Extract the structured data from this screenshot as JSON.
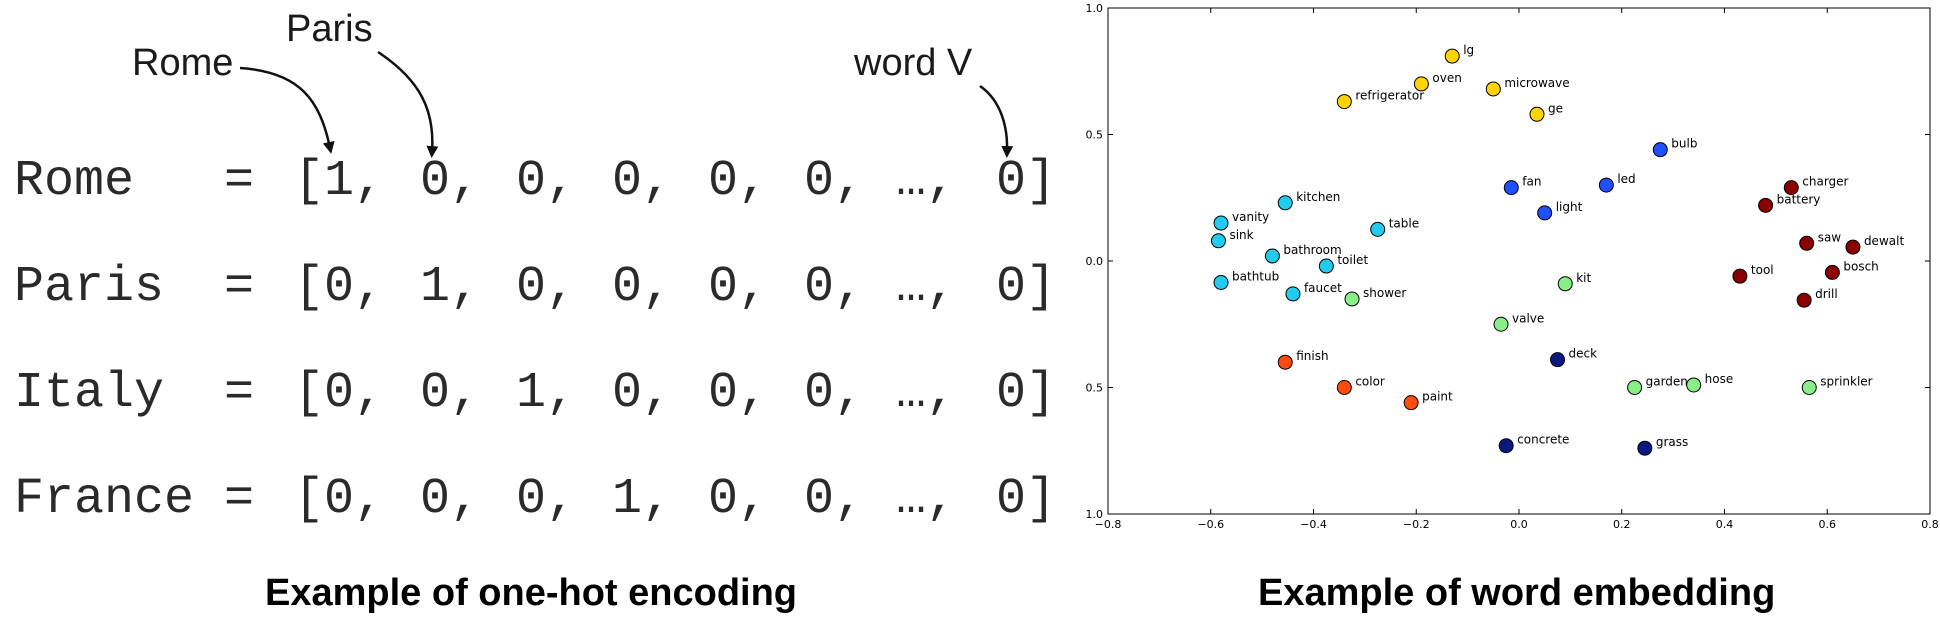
{
  "one_hot": {
    "callouts": {
      "rome": "Rome",
      "paris": "Paris",
      "word_v": "word V"
    },
    "open_bracket": "[",
    "close_bracket": "]",
    "equals": "=",
    "rows": [
      {
        "word": "Rome",
        "cells": [
          "1,",
          "0,",
          "0,",
          "0,",
          "0,",
          "0,",
          "…,",
          "0"
        ]
      },
      {
        "word": "Paris",
        "cells": [
          "0,",
          "1,",
          "0,",
          "0,",
          "0,",
          "0,",
          "…,",
          "0"
        ]
      },
      {
        "word": "Italy",
        "cells": [
          "0,",
          "0,",
          "1,",
          "0,",
          "0,",
          "0,",
          "…,",
          "0"
        ]
      },
      {
        "word": "France",
        "cells": [
          "0,",
          "0,",
          "0,",
          "1,",
          "0,",
          "0,",
          "…,",
          "0"
        ]
      }
    ],
    "caption": "Example of one-hot encoding"
  },
  "embedding_caption": "Example of word embedding",
  "chart_data": {
    "type": "scatter",
    "title": "",
    "xlabel": "",
    "ylabel": "",
    "xlim": [
      -0.8,
      0.8
    ],
    "ylim": [
      -1.0,
      1.0
    ],
    "x_ticks": [
      "−0.8",
      "−0.6",
      "−0.4",
      "−0.2",
      "0.0",
      "0.2",
      "0.4",
      "0.6",
      "0.8"
    ],
    "y_ticks": [
      "1.0",
      "0.5",
      "0.0",
      "0.5",
      "1.0"
    ],
    "grid": false,
    "points": [
      {
        "label": "lg",
        "x": -0.13,
        "y": 0.81,
        "color": "#ffd400"
      },
      {
        "label": "oven",
        "x": -0.19,
        "y": 0.7,
        "color": "#ffd400"
      },
      {
        "label": "microwave",
        "x": -0.05,
        "y": 0.68,
        "color": "#ffd400"
      },
      {
        "label": "refrigerator",
        "x": -0.34,
        "y": 0.63,
        "color": "#ffd400"
      },
      {
        "label": "ge",
        "x": 0.035,
        "y": 0.58,
        "color": "#ffd400"
      },
      {
        "label": "bulb",
        "x": 0.275,
        "y": 0.44,
        "color": "#1f4fff"
      },
      {
        "label": "fan",
        "x": -0.015,
        "y": 0.29,
        "color": "#1f4fff"
      },
      {
        "label": "led",
        "x": 0.17,
        "y": 0.3,
        "color": "#1f4fff"
      },
      {
        "label": "light",
        "x": 0.05,
        "y": 0.19,
        "color": "#1f4fff"
      },
      {
        "label": "charger",
        "x": 0.53,
        "y": 0.29,
        "color": "#8a0000"
      },
      {
        "label": "battery",
        "x": 0.48,
        "y": 0.22,
        "color": "#8a0000"
      },
      {
        "label": "saw",
        "x": 0.56,
        "y": 0.07,
        "color": "#8a0000"
      },
      {
        "label": "dewalt",
        "x": 0.65,
        "y": 0.055,
        "color": "#8a0000"
      },
      {
        "label": "bosch",
        "x": 0.61,
        "y": -0.045,
        "color": "#8a0000"
      },
      {
        "label": "tool",
        "x": 0.43,
        "y": -0.06,
        "color": "#8a0000"
      },
      {
        "label": "drill",
        "x": 0.555,
        "y": -0.155,
        "color": "#8a0000"
      },
      {
        "label": "kitchen",
        "x": -0.455,
        "y": 0.23,
        "color": "#22ccee"
      },
      {
        "label": "vanity",
        "x": -0.58,
        "y": 0.15,
        "color": "#22ccee"
      },
      {
        "label": "table",
        "x": -0.275,
        "y": 0.125,
        "color": "#22ccee"
      },
      {
        "label": "sink",
        "x": -0.585,
        "y": 0.08,
        "color": "#22ccee"
      },
      {
        "label": "bathroom",
        "x": -0.48,
        "y": 0.02,
        "color": "#22ccee"
      },
      {
        "label": "toilet",
        "x": -0.375,
        "y": -0.02,
        "color": "#22ccee"
      },
      {
        "label": "bathtub",
        "x": -0.58,
        "y": -0.085,
        "color": "#22ccee"
      },
      {
        "label": "faucet",
        "x": -0.44,
        "y": -0.13,
        "color": "#22ccee"
      },
      {
        "label": "shower",
        "x": -0.325,
        "y": -0.15,
        "color": "#88ee88"
      },
      {
        "label": "kit",
        "x": 0.09,
        "y": -0.09,
        "color": "#88ee88"
      },
      {
        "label": "valve",
        "x": -0.035,
        "y": -0.25,
        "color": "#88ee88"
      },
      {
        "label": "garden",
        "x": 0.225,
        "y": -0.5,
        "color": "#88ee88"
      },
      {
        "label": "hose",
        "x": 0.34,
        "y": -0.49,
        "color": "#88ee88"
      },
      {
        "label": "sprinkler",
        "x": 0.565,
        "y": -0.5,
        "color": "#88ee88"
      },
      {
        "label": "finish",
        "x": -0.455,
        "y": -0.4,
        "color": "#ff4a10"
      },
      {
        "label": "color",
        "x": -0.34,
        "y": -0.5,
        "color": "#ff4a10"
      },
      {
        "label": "paint",
        "x": -0.21,
        "y": -0.56,
        "color": "#ff4a10"
      },
      {
        "label": "deck",
        "x": 0.075,
        "y": -0.39,
        "color": "#0a1a80"
      },
      {
        "label": "concrete",
        "x": -0.025,
        "y": -0.73,
        "color": "#0a1a80"
      },
      {
        "label": "grass",
        "x": 0.245,
        "y": -0.74,
        "color": "#0a1a80"
      }
    ]
  }
}
